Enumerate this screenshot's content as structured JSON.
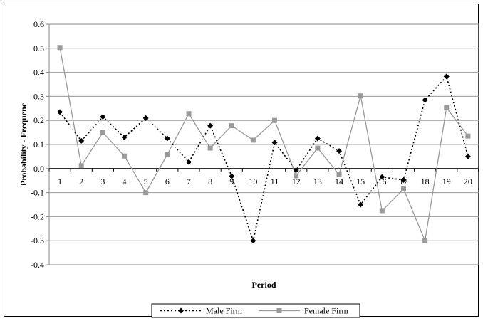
{
  "chart_data": {
    "type": "line",
    "title": "",
    "xlabel": "Period",
    "ylabel": "Probability - Frequenc",
    "ylim": [
      -0.4,
      0.6
    ],
    "yticks": [
      "0.6",
      "0.5",
      "0.4",
      "0.3",
      "0.2",
      "0.1",
      "0.0",
      "-0.1",
      "-0.2",
      "-0.3",
      "-0.4"
    ],
    "categories": [
      "1",
      "2",
      "3",
      "4",
      "5",
      "6",
      "7",
      "8",
      "9",
      "10",
      "11",
      "12",
      "13",
      "14",
      "15",
      "16",
      "17",
      "18",
      "19",
      "20"
    ],
    "grid": true,
    "legend_position": "bottom",
    "series": [
      {
        "name": "Male Firm",
        "color": "#000000",
        "line_style": "dotted",
        "marker": "diamond",
        "values": [
          0.235,
          0.115,
          0.215,
          0.13,
          0.21,
          0.125,
          0.027,
          0.178,
          -0.032,
          -0.3,
          0.108,
          -0.007,
          0.125,
          0.073,
          -0.15,
          -0.035,
          -0.048,
          0.285,
          0.383,
          0.05
        ]
      },
      {
        "name": "Female Firm",
        "color": "#999999",
        "line_style": "solid",
        "marker": "square",
        "values": [
          0.503,
          0.012,
          0.15,
          0.052,
          -0.1,
          0.058,
          0.228,
          0.085,
          0.178,
          0.118,
          0.2,
          -0.03,
          0.085,
          -0.025,
          0.302,
          -0.175,
          -0.085,
          -0.3,
          0.253,
          0.135
        ]
      }
    ]
  }
}
